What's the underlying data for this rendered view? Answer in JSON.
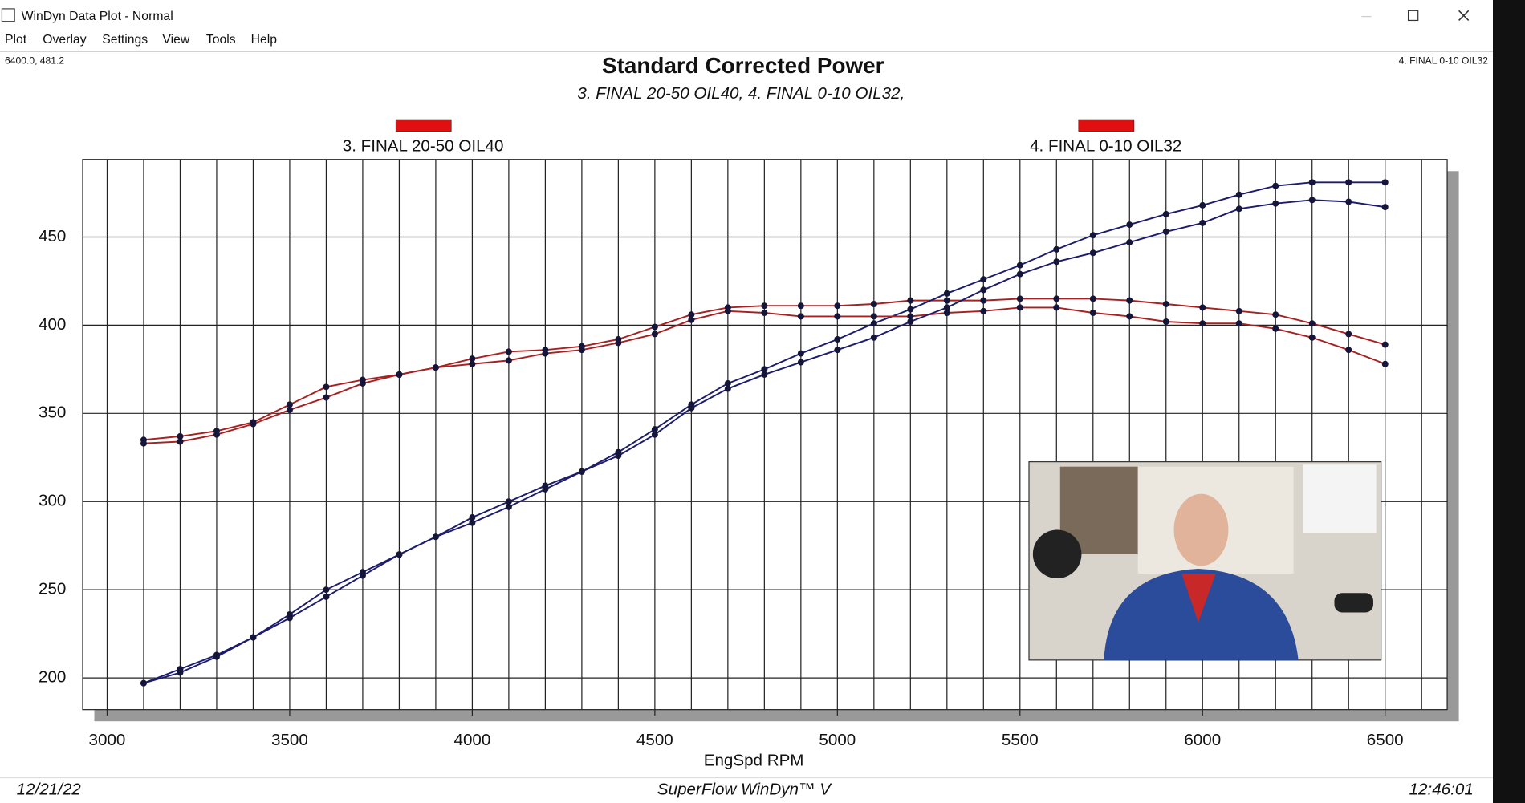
{
  "window": {
    "title": "WinDyn Data Plot - Normal",
    "menu": [
      "Plot",
      "Overlay",
      "Settings",
      "View",
      "Tools",
      "Help"
    ],
    "cursor": "6400.0, 481.2",
    "active_run": "4. FINAL 0-10 OIL32"
  },
  "chart_data": {
    "type": "line",
    "title": "Standard Corrected Power",
    "subtitle": "3. FINAL 20-50 OIL40, 4. FINAL 0-10 OIL32,",
    "xlabel": "EngSpd RPM",
    "x": [
      3100,
      3200,
      3300,
      3400,
      3500,
      3600,
      3700,
      3800,
      3900,
      4000,
      4100,
      4200,
      4300,
      4400,
      4500,
      4600,
      4700,
      4800,
      4900,
      5000,
      5100,
      5200,
      5300,
      5400,
      5500,
      5600,
      5700,
      5800,
      5900,
      6000,
      6100,
      6200,
      6300,
      6400,
      6500
    ],
    "xlim": [
      2933,
      6670
    ],
    "xticks": [
      3000,
      3500,
      4000,
      4500,
      5000,
      5500,
      6000,
      6500
    ],
    "x_grid_step": 100,
    "ylim": [
      182,
      494
    ],
    "yticks": [
      200,
      250,
      300,
      350,
      400,
      450
    ],
    "grid": true,
    "series": [
      {
        "name": "3. FINAL 20-50 OIL40",
        "color": "#e01010",
        "lines": [
          {
            "color": "#a82020",
            "values": [
              335,
              337,
              340,
              345,
              355,
              365,
              369,
              372,
              376,
              381,
              385,
              386,
              388,
              392,
              399,
              406,
              410,
              411,
              411,
              411,
              412,
              414,
              414,
              414,
              415,
              415,
              415,
              414,
              412,
              410,
              408,
              406,
              401,
              395,
              389
            ]
          },
          {
            "color": "#1c1c6e",
            "values": [
              197,
              205,
              213,
              223,
              236,
              250,
              260,
              270,
              280,
              291,
              300,
              309,
              317,
              328,
              341,
              355,
              367,
              375,
              384,
              392,
              401,
              409,
              418,
              426,
              434,
              443,
              451,
              457,
              463,
              468,
              474,
              479,
              481,
              481,
              481
            ]
          }
        ]
      },
      {
        "name": "4. FINAL 0-10 OIL32",
        "color": "#e01010",
        "lines": [
          {
            "color": "#a82020",
            "values": [
              333,
              334,
              338,
              344,
              352,
              359,
              367,
              372,
              376,
              378,
              380,
              384,
              386,
              390,
              395,
              403,
              408,
              407,
              405,
              405,
              405,
              405,
              407,
              408,
              410,
              410,
              407,
              405,
              402,
              401,
              401,
              398,
              393,
              386,
              378
            ]
          },
          {
            "color": "#1c1c6e",
            "values": [
              197,
              203,
              212,
              223,
              234,
              246,
              258,
              270,
              280,
              288,
              297,
              307,
              317,
              326,
              338,
              353,
              364,
              372,
              379,
              386,
              393,
              402,
              410,
              420,
              429,
              436,
              441,
              447,
              453,
              458,
              466,
              469,
              471,
              470,
              467
            ]
          }
        ]
      }
    ]
  },
  "footer": {
    "date": "12/21/22",
    "product": "SuperFlow WinDyn™ V",
    "time": "12:46:01"
  }
}
